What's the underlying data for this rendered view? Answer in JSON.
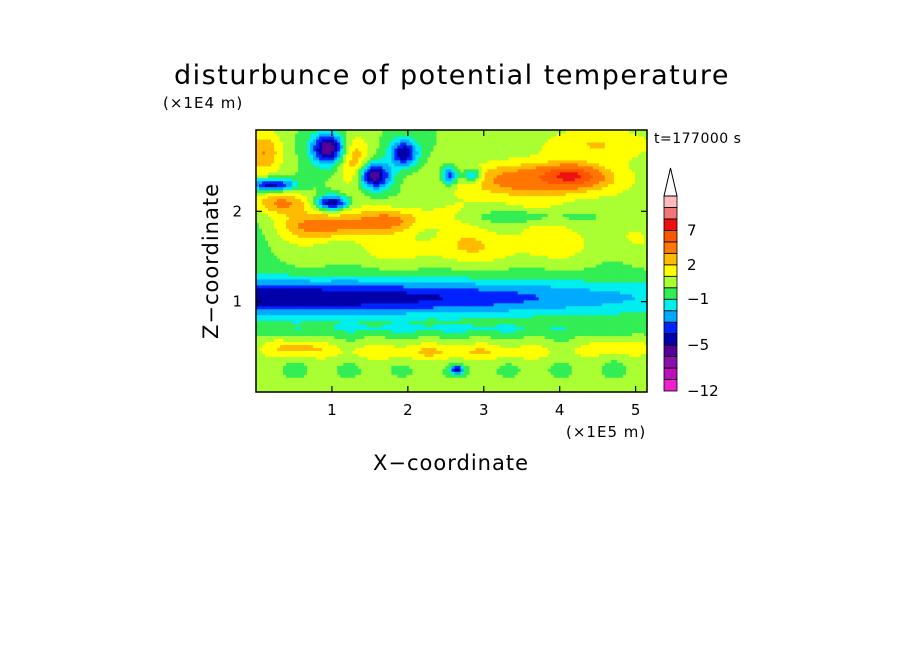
{
  "chart_data": {
    "type": "heatmap",
    "title": "disturbunce of potential temperature",
    "xlabel": "X−coordinate",
    "ylabel": "Z−coordinate",
    "x_unit": "(×1E5 m)",
    "y_unit": "(×1E4 m)",
    "time_label": "t=177000 s",
    "xlim": [
      0,
      5.15
    ],
    "ylim": [
      0,
      2.9
    ],
    "x_ticks": [
      1,
      2,
      3,
      4,
      5
    ],
    "x_tick_labels": [
      "1",
      "2",
      "3",
      "4",
      "5"
    ],
    "y_ticks": [
      1,
      2
    ],
    "y_tick_labels": [
      "1",
      "2"
    ],
    "colorbar": {
      "levels": [
        -12,
        -11,
        -9,
        -7,
        -5,
        -4,
        -3,
        -2,
        -1,
        0,
        1,
        2,
        3,
        5,
        7,
        9,
        11
      ],
      "labeled_levels": [
        -12,
        -5,
        -1,
        2,
        7
      ],
      "labels": [
        "−12",
        "−5",
        "−1",
        "2",
        "7"
      ],
      "colors": [
        "#ee22cc",
        "#bb11bb",
        "#8811aa",
        "#550099",
        "#0000aa",
        "#0022ff",
        "#00aaff",
        "#00eeee",
        "#33ee55",
        "#aaff33",
        "#ffff00",
        "#ffbb00",
        "#ff7700",
        "#ff5500",
        "#ee1111",
        "#ee7777",
        "#ffbbbb"
      ],
      "extend": "max"
    },
    "features": [
      {
        "x": 0.0,
        "z": 1.05,
        "sx": 5.2,
        "sz": 0.2,
        "amp": -5.0
      },
      {
        "x": 3.7,
        "z": 2.35,
        "sx": 1.1,
        "sz": 0.2,
        "amp": 4.0
      },
      {
        "x": 4.15,
        "z": 2.4,
        "sx": 0.35,
        "sz": 0.1,
        "amp": 4.5
      },
      {
        "x": 0.9,
        "z": 1.85,
        "sx": 0.5,
        "sz": 0.15,
        "amp": 4.0
      },
      {
        "x": 1.8,
        "z": 1.9,
        "sx": 0.45,
        "sz": 0.13,
        "amp": 3.0
      },
      {
        "x": 0.35,
        "z": 2.1,
        "sx": 0.4,
        "sz": 0.12,
        "amp": 3.0
      },
      {
        "x": 0.1,
        "z": 2.65,
        "sx": 0.25,
        "sz": 0.25,
        "amp": 3.0
      },
      {
        "x": 0.95,
        "z": 2.7,
        "sx": 0.22,
        "sz": 0.17,
        "amp": -6.0
      },
      {
        "x": 1.55,
        "z": 2.4,
        "sx": 0.22,
        "sz": 0.15,
        "amp": -6.0
      },
      {
        "x": 1.0,
        "z": 2.1,
        "sx": 0.2,
        "sz": 0.08,
        "amp": -5.5
      },
      {
        "x": 0.2,
        "z": 2.3,
        "sx": 0.3,
        "sz": 0.07,
        "amp": -5.0
      },
      {
        "x": 1.95,
        "z": 2.65,
        "sx": 0.18,
        "sz": 0.15,
        "amp": -5.0
      },
      {
        "x": 2.55,
        "z": 2.4,
        "sx": 0.12,
        "sz": 0.1,
        "amp": -4.5
      },
      {
        "x": 2.85,
        "z": 2.4,
        "sx": 0.12,
        "sz": 0.08,
        "amp": -4.0
      },
      {
        "x": 1.3,
        "z": 2.55,
        "sx": 0.2,
        "sz": 0.3,
        "amp": 3.0
      },
      {
        "x": 2.5,
        "z": 1.6,
        "sx": 1.5,
        "sz": 0.2,
        "amp": 1.5
      },
      {
        "x": 4.0,
        "z": 1.7,
        "sx": 1.3,
        "sz": 0.2,
        "amp": 1.0
      },
      {
        "x": 2.5,
        "z": 0.45,
        "sx": 1.8,
        "sz": 0.1,
        "amp": 2.0
      },
      {
        "x": 0.5,
        "z": 0.5,
        "sx": 0.4,
        "sz": 0.1,
        "amp": 2.0
      },
      {
        "x": 4.8,
        "z": 0.5,
        "sx": 0.4,
        "sz": 0.1,
        "amp": 1.5
      },
      {
        "x": 2.5,
        "z": 0.7,
        "sx": 3.0,
        "sz": 0.07,
        "amp": -1.0
      },
      {
        "x": 2.5,
        "z": 0.05,
        "sx": 3.0,
        "sz": 0.1,
        "amp": 0.5
      },
      {
        "x": 3.0,
        "z": 2.0,
        "sx": 1.5,
        "sz": 0.15,
        "amp": 0.8
      },
      {
        "x": 4.5,
        "z": 2.75,
        "sx": 0.8,
        "sz": 0.2,
        "amp": 2.0
      },
      {
        "x": 3.5,
        "z": 1.95,
        "sx": 0.7,
        "sz": 0.08,
        "amp": -1.5
      },
      {
        "x": 2.65,
        "z": 0.25,
        "sx": 0.08,
        "sz": 0.05,
        "amp": -5.0
      }
    ]
  }
}
